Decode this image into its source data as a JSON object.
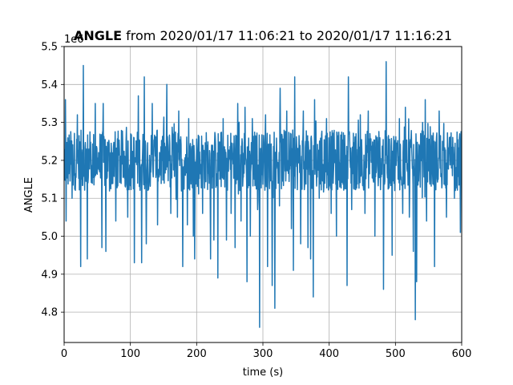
{
  "chart_data": {
    "type": "line",
    "title_bold": "ANGLE",
    "title_rest": " from 2020/01/17 11:06:21 to 2020/01/17 11:16:21",
    "xlabel": "time (s)",
    "ylabel": "ANGLE",
    "offset_label": "1e6",
    "xlim": [
      0,
      600
    ],
    "ylim": [
      4.72,
      5.5
    ],
    "xticks": [
      0,
      100,
      200,
      300,
      400,
      500,
      600
    ],
    "xtick_labels": [
      "0",
      "100",
      "200",
      "300",
      "400",
      "500",
      "600"
    ],
    "yticks": [
      4.8,
      4.9,
      5.0,
      5.1,
      5.2,
      5.3,
      5.4,
      5.5
    ],
    "ytick_labels": [
      "4.8",
      "4.9",
      "5.0",
      "5.1",
      "5.2",
      "5.3",
      "5.4",
      "5.5"
    ],
    "grid": true,
    "series": [
      {
        "color": "#1f77b4",
        "baseline": 5.2,
        "band_low": 5.12,
        "band_high": 5.28,
        "points_per_second": 2,
        "spikes": [
          {
            "x": 2,
            "y": 5.36
          },
          {
            "x": 3,
            "y": 5.04
          },
          {
            "x": 12,
            "y": 5.1
          },
          {
            "x": 20,
            "y": 5.32
          },
          {
            "x": 25,
            "y": 4.92
          },
          {
            "x": 29,
            "y": 5.45
          },
          {
            "x": 35,
            "y": 4.94
          },
          {
            "x": 47,
            "y": 5.35
          },
          {
            "x": 57,
            "y": 4.97
          },
          {
            "x": 59,
            "y": 5.35
          },
          {
            "x": 63,
            "y": 4.96
          },
          {
            "x": 78,
            "y": 5.04
          },
          {
            "x": 96,
            "y": 5.05
          },
          {
            "x": 106,
            "y": 4.93
          },
          {
            "x": 112,
            "y": 5.37
          },
          {
            "x": 117,
            "y": 4.93
          },
          {
            "x": 121,
            "y": 5.42
          },
          {
            "x": 124,
            "y": 4.98
          },
          {
            "x": 133,
            "y": 5.35
          },
          {
            "x": 141,
            "y": 5.03
          },
          {
            "x": 155,
            "y": 5.4
          },
          {
            "x": 161,
            "y": 5.06
          },
          {
            "x": 171,
            "y": 5.05
          },
          {
            "x": 173,
            "y": 5.33
          },
          {
            "x": 179,
            "y": 4.92
          },
          {
            "x": 186,
            "y": 5.03
          },
          {
            "x": 188,
            "y": 5.31
          },
          {
            "x": 195,
            "y": 5.0
          },
          {
            "x": 197,
            "y": 4.94
          },
          {
            "x": 209,
            "y": 5.06
          },
          {
            "x": 221,
            "y": 4.94
          },
          {
            "x": 226,
            "y": 4.99
          },
          {
            "x": 232,
            "y": 4.89
          },
          {
            "x": 240,
            "y": 5.31
          },
          {
            "x": 245,
            "y": 4.99
          },
          {
            "x": 252,
            "y": 5.06
          },
          {
            "x": 258,
            "y": 4.97
          },
          {
            "x": 262,
            "y": 5.35
          },
          {
            "x": 267,
            "y": 5.04
          },
          {
            "x": 273,
            "y": 5.34
          },
          {
            "x": 276,
            "y": 4.88
          },
          {
            "x": 281,
            "y": 5.0
          },
          {
            "x": 284,
            "y": 5.31
          },
          {
            "x": 292,
            "y": 5.07
          },
          {
            "x": 295,
            "y": 4.76
          },
          {
            "x": 304,
            "y": 5.32
          },
          {
            "x": 307,
            "y": 4.92
          },
          {
            "x": 314,
            "y": 4.87
          },
          {
            "x": 318,
            "y": 4.81
          },
          {
            "x": 325,
            "y": 5.08
          },
          {
            "x": 326,
            "y": 5.39
          },
          {
            "x": 336,
            "y": 5.33
          },
          {
            "x": 343,
            "y": 5.02
          },
          {
            "x": 346,
            "y": 4.91
          },
          {
            "x": 348,
            "y": 5.42
          },
          {
            "x": 357,
            "y": 4.98
          },
          {
            "x": 361,
            "y": 5.33
          },
          {
            "x": 368,
            "y": 4.97
          },
          {
            "x": 372,
            "y": 4.94
          },
          {
            "x": 376,
            "y": 4.84
          },
          {
            "x": 378,
            "y": 5.36
          },
          {
            "x": 385,
            "y": 5.1
          },
          {
            "x": 396,
            "y": 5.31
          },
          {
            "x": 403,
            "y": 5.06
          },
          {
            "x": 411,
            "y": 5.0
          },
          {
            "x": 427,
            "y": 4.87
          },
          {
            "x": 429,
            "y": 5.42
          },
          {
            "x": 434,
            "y": 5.07
          },
          {
            "x": 447,
            "y": 5.32
          },
          {
            "x": 454,
            "y": 5.06
          },
          {
            "x": 459,
            "y": 5.33
          },
          {
            "x": 469,
            "y": 5.0
          },
          {
            "x": 482,
            "y": 4.86
          },
          {
            "x": 486,
            "y": 5.46
          },
          {
            "x": 495,
            "y": 4.95
          },
          {
            "x": 506,
            "y": 5.31
          },
          {
            "x": 511,
            "y": 5.06
          },
          {
            "x": 515,
            "y": 5.34
          },
          {
            "x": 521,
            "y": 5.05
          },
          {
            "x": 527,
            "y": 4.96
          },
          {
            "x": 530,
            "y": 4.78
          },
          {
            "x": 532,
            "y": 4.88
          },
          {
            "x": 541,
            "y": 5.3
          },
          {
            "x": 545,
            "y": 5.36
          },
          {
            "x": 547,
            "y": 5.04
          },
          {
            "x": 559,
            "y": 4.92
          },
          {
            "x": 566,
            "y": 5.33
          },
          {
            "x": 577,
            "y": 5.05
          },
          {
            "x": 589,
            "y": 5.1
          },
          {
            "x": 597,
            "y": 5.27
          },
          {
            "x": 598,
            "y": 5.01
          }
        ]
      }
    ]
  }
}
